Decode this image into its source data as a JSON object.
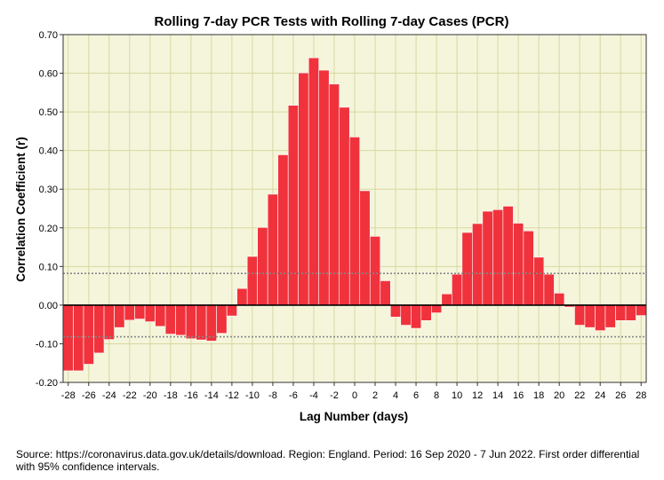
{
  "chart_data": {
    "type": "bar",
    "title": "Rolling 7-day PCR Tests with Rolling 7-day Cases (PCR)",
    "xlabel": "Lag Number (days)",
    "ylabel": "Correlation Coefficient (r)",
    "x": [
      -28,
      -27,
      -26,
      -25,
      -24,
      -23,
      -22,
      -21,
      -20,
      -19,
      -18,
      -17,
      -16,
      -15,
      -14,
      -13,
      -12,
      -11,
      -10,
      -9,
      -8,
      -7,
      -6,
      -5,
      -4,
      -3,
      -2,
      -1,
      0,
      1,
      2,
      3,
      4,
      5,
      6,
      7,
      8,
      9,
      10,
      11,
      12,
      13,
      14,
      15,
      16,
      17,
      18,
      19,
      20,
      21,
      22,
      23,
      24,
      25,
      26,
      27,
      28
    ],
    "values": [
      -0.17,
      -0.17,
      -0.153,
      -0.124,
      -0.089,
      -0.058,
      -0.039,
      -0.036,
      -0.043,
      -0.055,
      -0.075,
      -0.078,
      -0.087,
      -0.09,
      -0.093,
      -0.073,
      -0.028,
      0.043,
      0.126,
      0.201,
      0.287,
      0.389,
      0.517,
      0.601,
      0.64,
      0.608,
      0.572,
      0.512,
      0.435,
      0.296,
      0.178,
      0.063,
      -0.031,
      -0.052,
      -0.06,
      -0.04,
      -0.02,
      0.029,
      0.08,
      0.188,
      0.211,
      0.243,
      0.247,
      0.256,
      0.212,
      0.192,
      0.124,
      0.08,
      0.031,
      -0.005,
      -0.052,
      -0.058,
      -0.066,
      -0.058,
      -0.04,
      -0.04,
      -0.027
    ],
    "ylim": [
      -0.2,
      0.7
    ],
    "yticks": [
      "-0.20",
      "-0.10",
      "0.00",
      "0.10",
      "0.20",
      "0.30",
      "0.40",
      "0.50",
      "0.60",
      "0.70"
    ],
    "xticks": [
      "-28",
      "-26",
      "-24",
      "-22",
      "-20",
      "-18",
      "-16",
      "-14",
      "-12",
      "-10",
      "-8",
      "-6",
      "-4",
      "-2",
      "0",
      "2",
      "4",
      "6",
      "8",
      "10",
      "12",
      "14",
      "16",
      "18",
      "20",
      "22",
      "24",
      "26",
      "28"
    ],
    "confidence_interval": {
      "upper": 0.082,
      "lower": -0.082,
      "label": "95% confidence intervals"
    },
    "grid": true,
    "bar_color": "#f0323c",
    "background_color": "#f5f5dc",
    "grid_color": "#d8d8a0"
  },
  "note": "Source: https://coronavirus.data.gov.uk/details/download. Region: England. Period: 16 Sep 2020 - 7 Jun 2022. First order differential with 95% confidence intervals."
}
